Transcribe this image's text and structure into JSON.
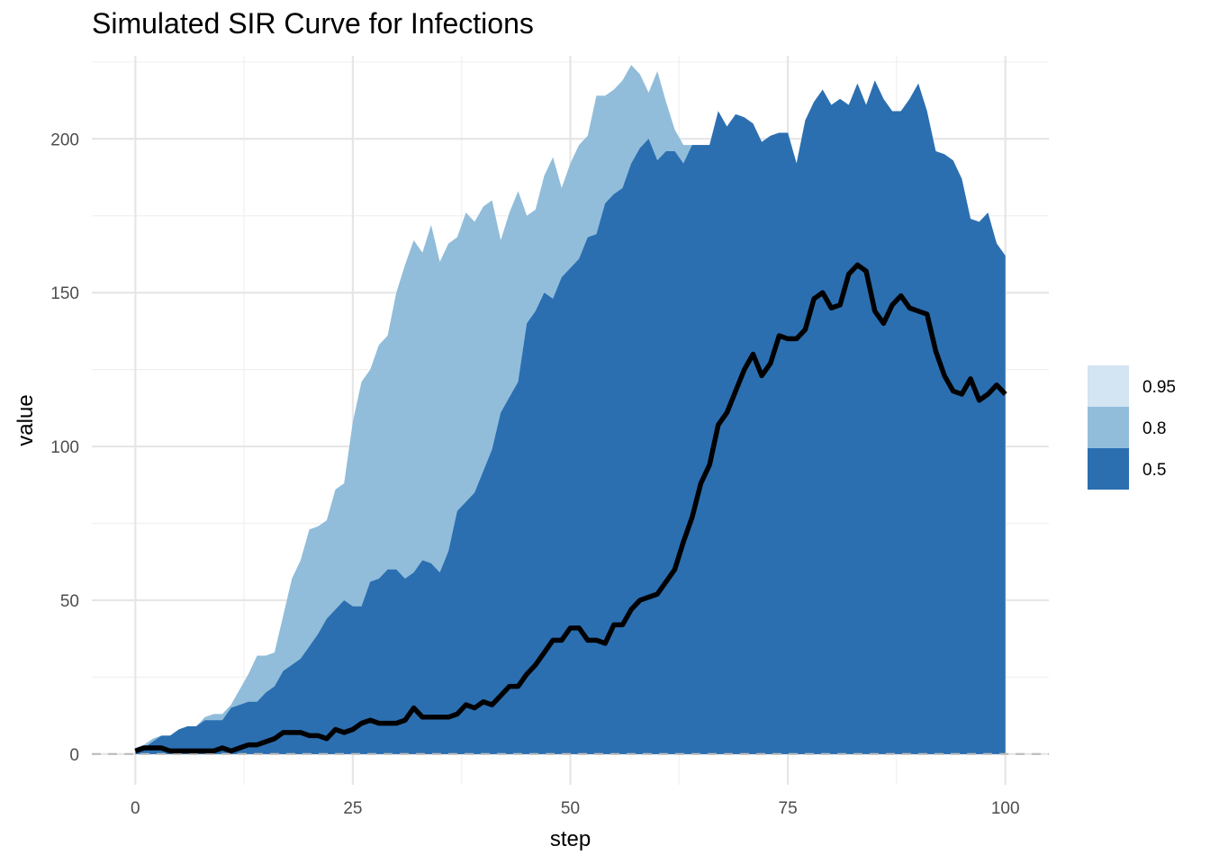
{
  "chart_data": {
    "type": "area",
    "title": "Simulated SIR Curve for Infections",
    "xlabel": "step",
    "ylabel": "value",
    "xlim": [
      -5,
      105
    ],
    "ylim": [
      -10,
      227
    ],
    "x_ticks": [
      0,
      25,
      50,
      75,
      100
    ],
    "y_ticks": [
      0,
      50,
      100,
      150,
      200
    ],
    "grid": true,
    "legend_position": "right",
    "reference_line": {
      "y": 0,
      "style": "dashed",
      "color": "#bdbdbd"
    },
    "colors": {
      "0.95": "#d3e4f3",
      "0.8": "#91bdda",
      "0.5": "#2b6fb1",
      "median": "#000000"
    },
    "legend": [
      "0.95",
      "0.8",
      "0.5"
    ],
    "x": [
      0,
      1,
      2,
      3,
      4,
      5,
      6,
      7,
      8,
      9,
      10,
      11,
      12,
      13,
      14,
      15,
      16,
      17,
      18,
      19,
      20,
      21,
      22,
      23,
      24,
      25,
      26,
      27,
      28,
      29,
      30,
      31,
      32,
      33,
      34,
      35,
      36,
      37,
      38,
      39,
      40,
      41,
      42,
      43,
      44,
      45,
      46,
      47,
      48,
      49,
      50,
      51,
      52,
      53,
      54,
      55,
      56,
      57,
      58,
      59,
      60,
      61,
      62,
      63,
      64,
      65,
      66,
      67,
      68,
      69,
      70,
      71,
      72,
      73,
      74,
      75,
      76,
      77,
      78,
      79,
      80,
      81,
      82,
      83,
      84,
      85,
      86,
      87,
      88,
      89,
      90,
      91,
      92,
      93,
      94,
      95,
      96,
      97,
      98,
      99,
      100
    ],
    "bands": [
      {
        "level": "0.95",
        "lower": [
          0,
          0,
          0,
          0,
          0,
          0,
          0,
          0,
          0,
          0,
          0,
          0,
          0,
          0,
          0,
          0,
          0,
          0,
          0,
          0,
          0,
          0,
          0,
          0,
          0,
          0,
          0,
          0,
          0,
          0,
          0,
          0,
          0,
          0,
          0,
          0,
          0,
          0,
          0,
          0,
          0,
          0,
          0,
          0,
          0,
          0,
          0,
          0,
          0,
          0,
          0,
          0,
          0,
          0,
          0,
          0,
          0,
          0,
          0,
          0,
          0,
          0,
          0,
          0,
          0,
          0,
          0,
          0,
          0,
          0,
          0,
          0,
          0,
          0,
          0,
          0,
          0,
          0,
          0,
          0,
          0,
          0,
          0,
          0,
          0,
          0,
          0,
          0,
          0,
          0,
          0,
          0,
          0,
          0,
          0,
          0,
          0,
          0,
          0,
          0,
          0
        ],
        "upper": [
          2,
          3,
          5,
          6,
          6,
          8,
          9,
          9,
          12,
          13,
          13,
          16,
          21,
          26,
          32,
          32,
          33,
          45,
          57,
          63,
          73,
          74,
          76,
          86,
          88,
          108,
          121,
          125,
          133,
          136,
          150,
          159,
          167,
          163,
          172,
          160,
          166,
          168,
          176,
          173,
          178,
          180,
          167,
          176,
          183,
          175,
          177,
          188,
          194,
          184,
          192,
          198,
          201,
          214,
          214,
          216,
          219,
          224,
          221,
          215,
          222,
          212,
          203,
          198,
          198,
          198,
          198,
          209,
          204,
          208,
          207,
          205,
          199,
          201,
          202,
          202,
          192,
          206,
          212,
          216,
          211,
          213,
          211,
          218,
          211,
          219,
          213,
          209,
          209,
          213,
          218,
          209,
          196,
          195,
          193,
          187,
          174,
          173,
          176,
          166,
          162
        ]
      },
      {
        "level": "0.8",
        "lower": [
          0,
          0,
          0,
          0,
          0,
          0,
          0,
          0,
          0,
          0,
          0,
          0,
          0,
          0,
          0,
          0,
          0,
          0,
          0,
          0,
          0,
          0,
          0,
          0,
          0,
          0,
          0,
          0,
          0,
          0,
          0,
          0,
          0,
          0,
          0,
          0,
          0,
          0,
          0,
          0,
          0,
          0,
          0,
          0,
          0,
          0,
          0,
          0,
          0,
          0,
          0,
          0,
          0,
          0,
          0,
          0,
          0,
          0,
          0,
          0,
          0,
          0,
          0,
          0,
          0,
          0,
          0,
          0,
          0,
          0,
          0,
          0,
          0,
          0,
          0,
          0,
          0,
          0,
          0,
          0,
          0,
          0,
          0,
          0,
          0,
          0,
          0,
          0,
          0,
          0,
          0,
          0,
          0,
          0,
          0,
          0,
          0,
          0,
          0,
          0,
          0
        ],
        "upper": [
          2,
          3,
          5,
          6,
          6,
          8,
          9,
          9,
          12,
          13,
          13,
          16,
          21,
          26,
          32,
          32,
          33,
          45,
          57,
          63,
          73,
          74,
          76,
          86,
          88,
          108,
          121,
          125,
          133,
          136,
          150,
          159,
          167,
          163,
          172,
          160,
          166,
          168,
          176,
          173,
          178,
          180,
          167,
          176,
          183,
          175,
          177,
          188,
          194,
          184,
          192,
          198,
          201,
          214,
          214,
          216,
          219,
          224,
          221,
          215,
          222,
          212,
          203,
          198,
          198,
          198,
          198,
          209,
          204,
          208,
          207,
          205,
          199,
          201,
          202,
          202,
          192,
          206,
          212,
          216,
          211,
          213,
          211,
          218,
          211,
          219,
          213,
          209,
          209,
          213,
          218,
          209,
          196,
          195,
          193,
          187,
          174,
          173,
          176,
          166,
          162
        ]
      },
      {
        "level": "0.5",
        "lower": [
          0,
          0,
          0,
          0,
          0,
          0,
          0,
          0,
          0,
          0,
          0,
          0,
          0,
          0,
          0,
          0,
          0,
          0,
          0,
          0,
          0,
          0,
          0,
          0,
          0,
          0,
          0,
          0,
          0,
          0,
          0,
          0,
          0,
          0,
          0,
          0,
          0,
          0,
          0,
          0,
          0,
          0,
          0,
          0,
          0,
          0,
          0,
          0,
          0,
          0,
          0,
          0,
          0,
          0,
          0,
          0,
          0,
          0,
          0,
          0,
          0,
          0,
          0,
          0,
          0,
          0,
          0,
          0,
          0,
          0,
          0,
          0,
          0,
          0,
          0,
          0,
          0,
          0,
          0,
          0,
          0,
          0,
          0,
          0,
          0,
          0,
          0,
          0,
          0,
          0,
          0,
          0,
          0,
          0,
          0,
          0,
          0,
          0,
          0,
          0,
          0
        ],
        "upper": [
          1,
          2,
          4,
          6,
          6,
          8,
          9,
          9,
          11,
          11,
          11,
          15,
          16,
          17,
          17,
          20,
          22,
          27,
          29,
          31,
          35,
          39,
          44,
          47,
          50,
          48,
          48,
          56,
          57,
          60,
          60,
          57,
          59,
          63,
          62,
          59,
          66,
          79,
          82,
          85,
          92,
          99,
          111,
          116,
          121,
          140,
          144,
          150,
          148,
          155,
          158,
          161,
          168,
          169,
          179,
          182,
          184,
          192,
          197,
          200,
          193,
          196,
          196,
          192,
          198,
          198,
          198,
          209,
          204,
          208,
          207,
          205,
          199,
          201,
          202,
          202,
          192,
          206,
          212,
          216,
          211,
          213,
          211,
          218,
          211,
          219,
          213,
          209,
          209,
          213,
          218,
          209,
          196,
          195,
          193,
          187,
          174,
          173,
          176,
          166,
          162
        ]
      }
    ],
    "median": [
      1,
      2,
      2,
      2,
      1,
      1,
      1,
      1,
      1,
      1,
      2,
      1,
      2,
      3,
      3,
      4,
      5,
      7,
      7,
      7,
      6,
      6,
      5,
      8,
      7,
      8,
      10,
      11,
      10,
      10,
      10,
      11,
      15,
      12,
      12,
      12,
      12,
      13,
      16,
      15,
      17,
      16,
      19,
      22,
      22,
      26,
      29,
      33,
      37,
      37,
      41,
      41,
      37,
      37,
      36,
      42,
      42,
      47,
      50,
      51,
      52,
      56,
      60,
      69,
      77,
      88,
      94,
      107,
      111,
      118,
      125,
      130,
      123,
      127,
      136,
      135,
      135,
      138,
      148,
      150,
      145,
      146,
      156,
      159,
      157,
      144,
      140,
      146,
      149,
      145,
      144,
      143,
      131,
      123,
      118,
      117,
      122,
      115,
      117,
      120,
      117
    ]
  }
}
